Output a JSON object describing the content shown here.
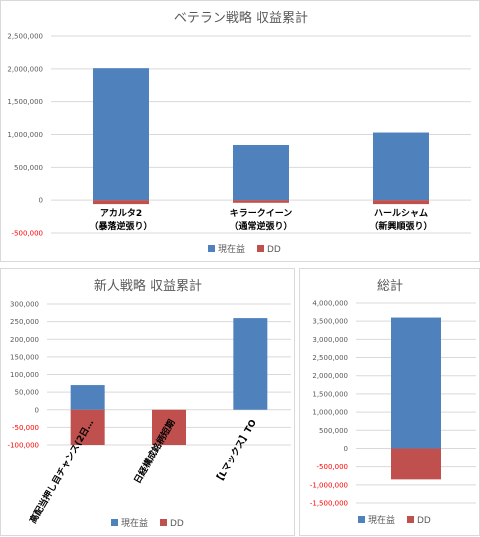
{
  "chart_data": [
    {
      "type": "bar",
      "title": "ベテラン戦略 収益累計",
      "categories": [
        [
          "アカルタ2",
          "（暴落逆張り）"
        ],
        [
          "キラークイーン",
          "（通常逆張り）"
        ],
        [
          "ハールシャム",
          "（新興順張り）"
        ]
      ],
      "series": [
        {
          "name": "現在益",
          "color": "#4f81bd",
          "values": [
            2010000,
            840000,
            1030000
          ]
        },
        {
          "name": "DD",
          "color": "#c0504d",
          "values": [
            -60000,
            -40000,
            -60000
          ]
        }
      ],
      "ylim": [
        -500000,
        2500000
      ],
      "ytick_step": 500000,
      "yticks": [
        "-500,000",
        "0",
        "500,000",
        "1,000,000",
        "1,500,000",
        "2,000,000",
        "2,500,000"
      ],
      "legend_position": "bottom",
      "grid": true
    },
    {
      "type": "bar",
      "title": "新人戦略 収益累計",
      "categories": [
        "高配当押し目チャンス(2日…",
        "日経構成銘柄短期",
        "【Lマックス】TO"
      ],
      "series": [
        {
          "name": "現在益",
          "color": "#4f81bd",
          "values": [
            70000,
            0,
            260000
          ]
        },
        {
          "name": "DD",
          "color": "#c0504d",
          "values": [
            -100000,
            -100000,
            0
          ]
        }
      ],
      "ylim": [
        -100000,
        300000
      ],
      "ytick_step": 50000,
      "yticks": [
        "-100,000",
        "-50,000",
        "0",
        "50,000",
        "100,000",
        "150,000",
        "200,000",
        "250,000",
        "300,000"
      ],
      "legend_position": "bottom",
      "grid": true
    },
    {
      "type": "bar",
      "title": "総計",
      "categories": [
        ""
      ],
      "series": [
        {
          "name": "現在益",
          "color": "#4f81bd",
          "values": [
            3600000
          ]
        },
        {
          "name": "DD",
          "color": "#c0504d",
          "values": [
            -850000
          ]
        }
      ],
      "ylim": [
        -1500000,
        4000000
      ],
      "ytick_step": 500000,
      "yticks": [
        "-1,500,000",
        "-1,000,000",
        "-500,000",
        "0",
        "500,000",
        "1,000,000",
        "1,500,000",
        "2,000,000",
        "2,500,000",
        "3,000,000",
        "3,500,000",
        "4,000,000"
      ],
      "legend_position": "bottom",
      "grid": true
    }
  ]
}
